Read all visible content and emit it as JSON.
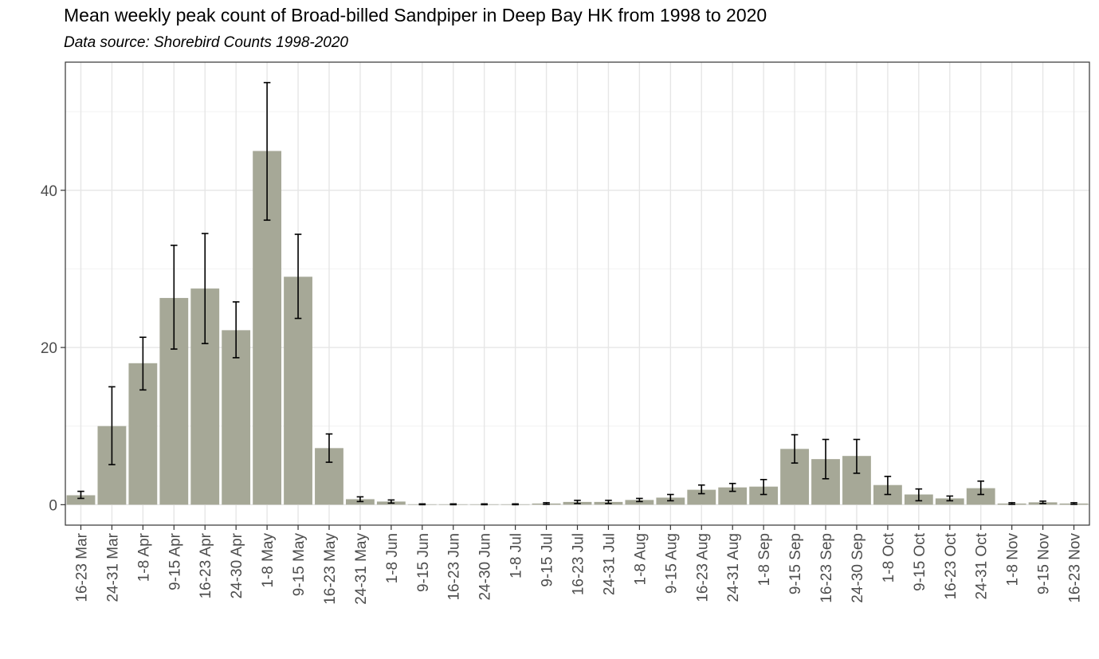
{
  "chart_data": {
    "type": "bar",
    "title": "Mean weekly peak count of Broad-billed Sandpiper in Deep Bay HK from 1998 to 2020",
    "subtitle": "Data source: Shorebird Counts 1998-2020",
    "xlabel": "",
    "ylabel": "",
    "ylim": [
      -2.6,
      56.3
    ],
    "yticks": [
      0,
      20,
      40
    ],
    "grid": true,
    "bar_color": "#a6a897",
    "categories": [
      "16-23 Mar",
      "24-31 Mar",
      "1-8 Apr",
      "9-15 Apr",
      "16-23 Apr",
      "24-30 Apr",
      "1-8 May",
      "9-15 May",
      "16-23 May",
      "24-31 May",
      "1-8 Jun",
      "9-15 Jun",
      "16-23 Jun",
      "24-30 Jun",
      "1-8 Jul",
      "9-15 Jul",
      "16-23 Jul",
      "24-31 Jul",
      "1-8 Aug",
      "9-15 Aug",
      "16-23 Aug",
      "24-31 Aug",
      "1-8 Sep",
      "9-15 Sep",
      "16-23 Sep",
      "24-30 Sep",
      "1-8 Oct",
      "9-15 Oct",
      "16-23 Oct",
      "24-31 Oct",
      "1-8 Nov",
      "9-15 Nov",
      "16-23 Nov"
    ],
    "values": [
      1.2,
      10.0,
      18.0,
      26.3,
      27.5,
      22.2,
      45.0,
      29.0,
      7.2,
      0.7,
      0.4,
      0.05,
      0.05,
      0.05,
      0.05,
      0.15,
      0.35,
      0.35,
      0.6,
      0.9,
      1.9,
      2.2,
      2.3,
      7.1,
      5.8,
      6.2,
      2.5,
      1.3,
      0.8,
      2.1,
      0.15,
      0.3,
      0.15
    ],
    "error_low": [
      0.8,
      5.1,
      14.6,
      19.8,
      20.5,
      18.7,
      36.2,
      23.7,
      5.4,
      0.4,
      0.2,
      0.0,
      0.0,
      0.0,
      0.0,
      0.05,
      0.15,
      0.15,
      0.4,
      0.5,
      1.4,
      1.7,
      1.3,
      5.3,
      3.3,
      4.0,
      1.3,
      0.5,
      0.5,
      1.3,
      0.05,
      0.15,
      0.05
    ],
    "error_high": [
      1.7,
      15.0,
      21.3,
      33.0,
      34.5,
      25.8,
      53.7,
      34.4,
      9.0,
      1.0,
      0.6,
      0.1,
      0.1,
      0.1,
      0.1,
      0.25,
      0.55,
      0.55,
      0.8,
      1.3,
      2.5,
      2.7,
      3.2,
      8.9,
      8.3,
      8.3,
      3.6,
      2.0,
      1.1,
      3.0,
      0.25,
      0.45,
      0.25
    ]
  }
}
